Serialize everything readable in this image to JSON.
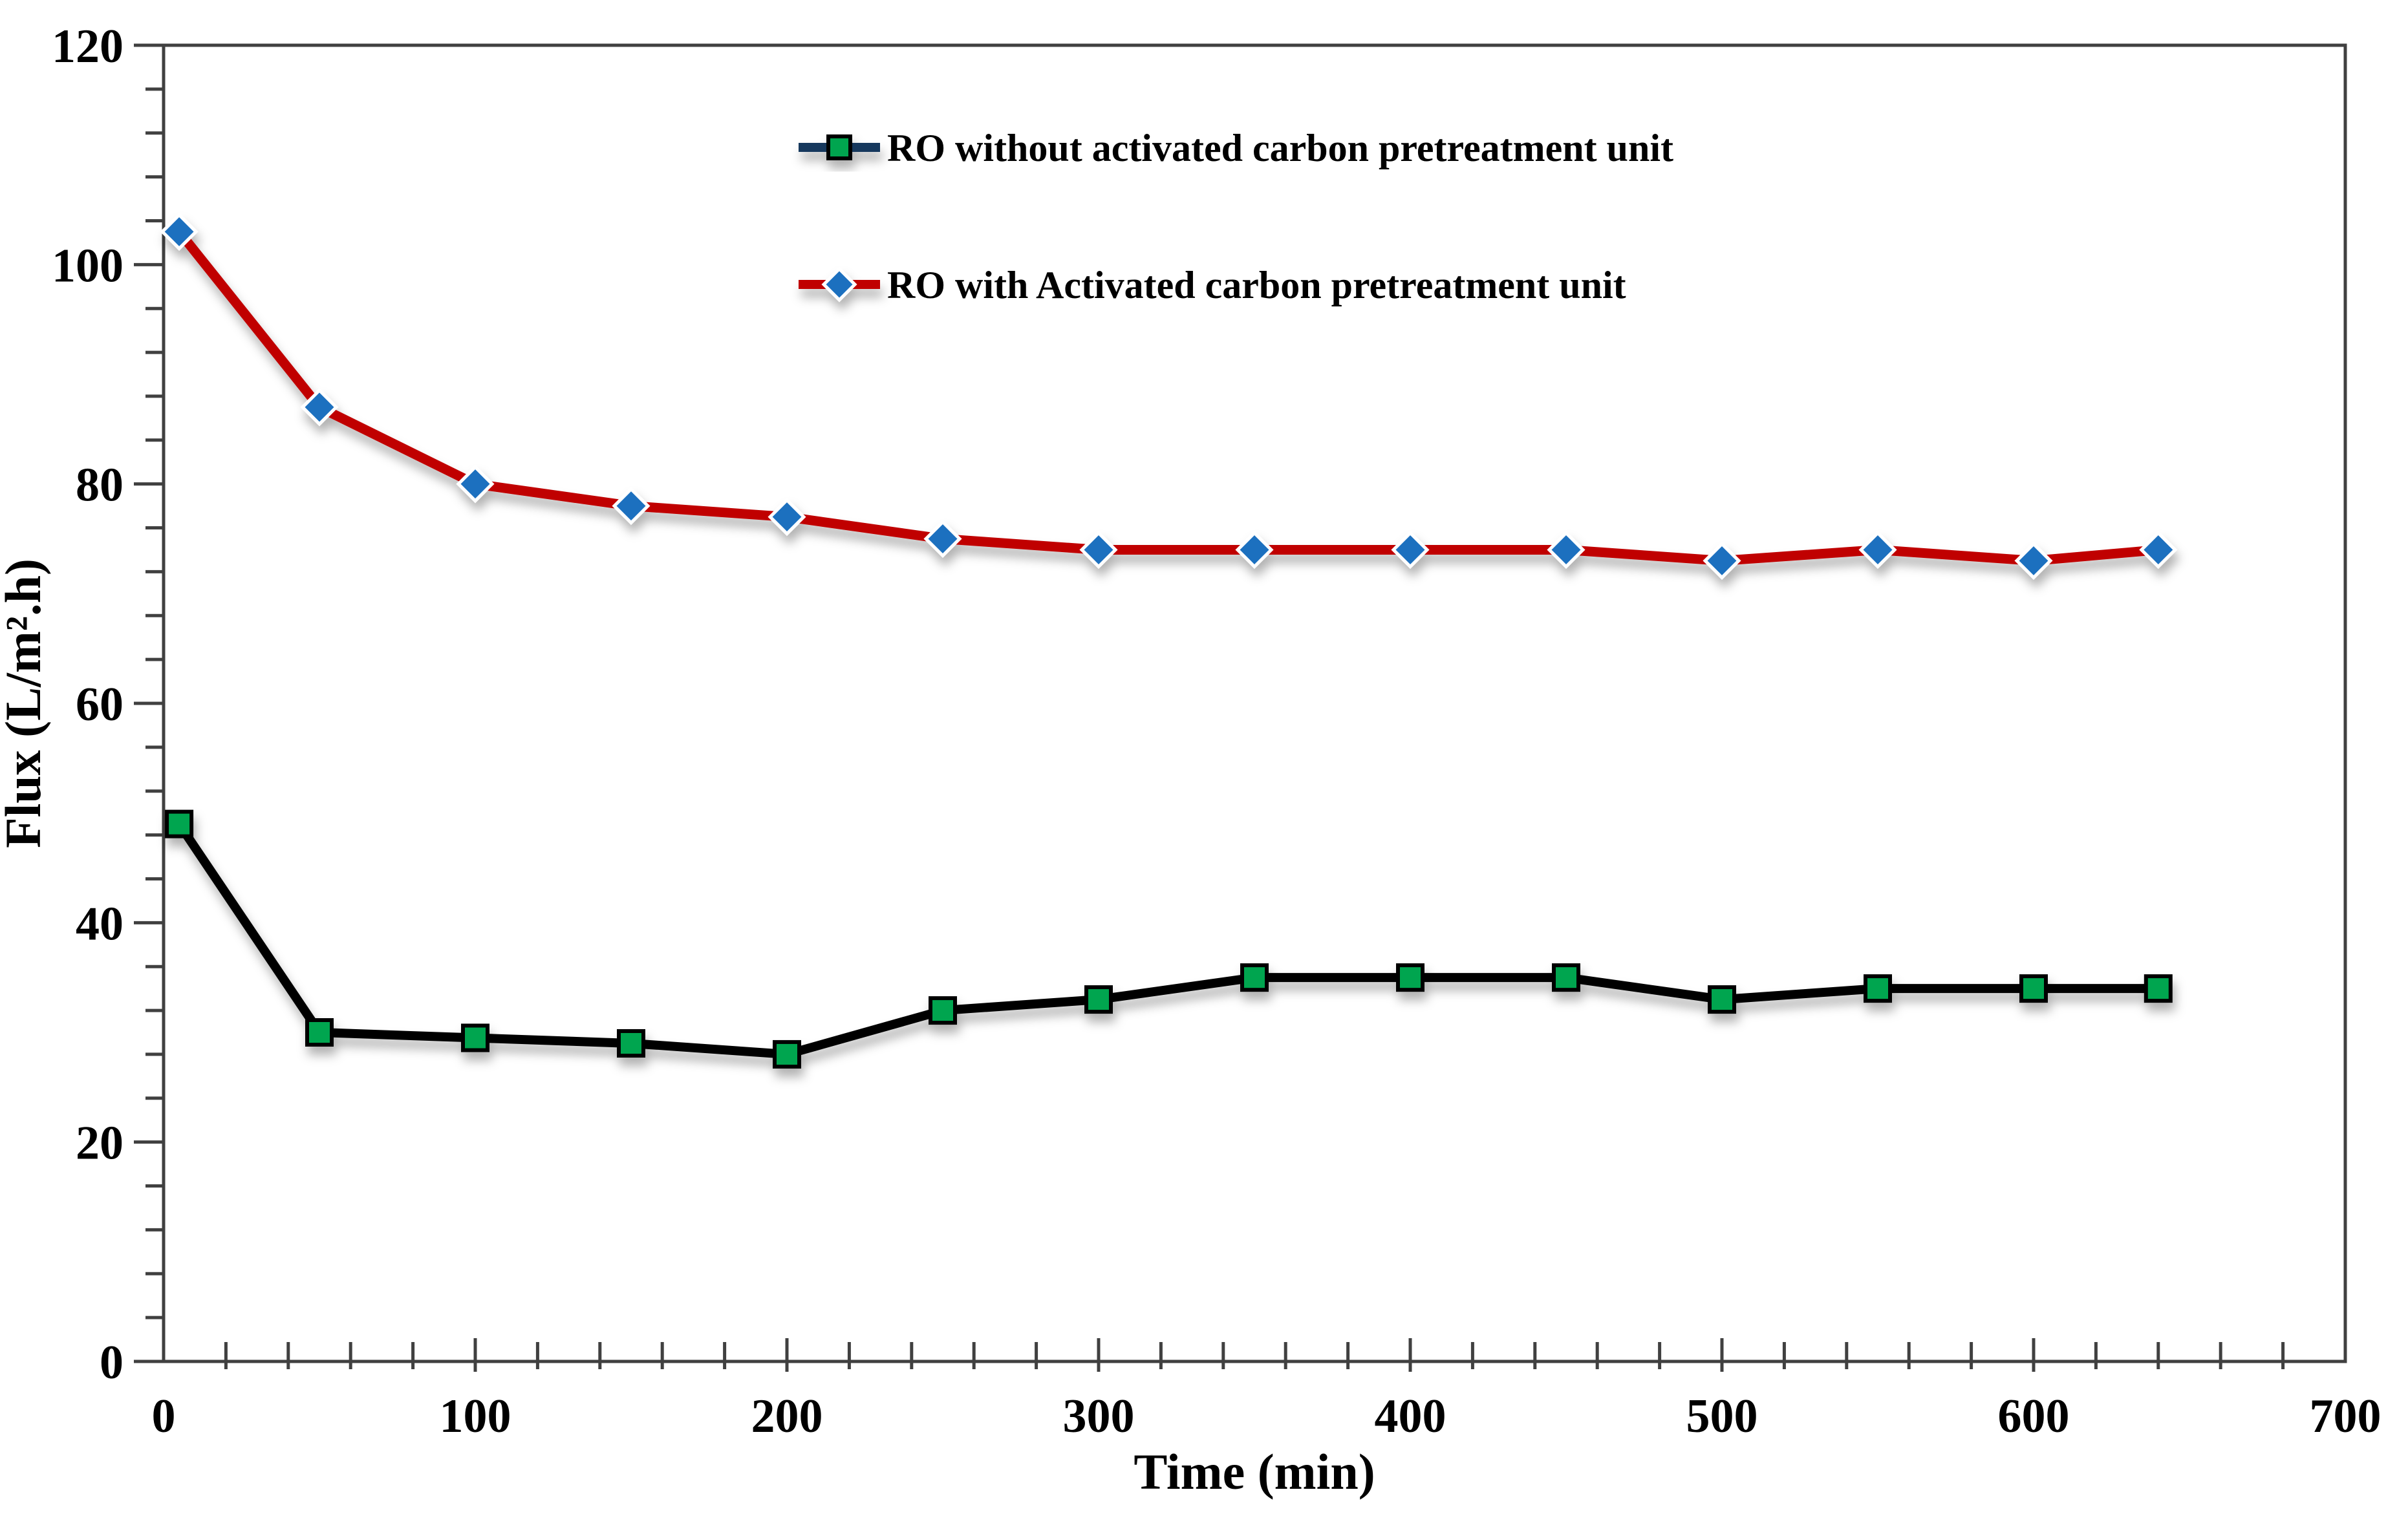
{
  "chart_data": {
    "type": "line",
    "title": "",
    "xlabel": "Time (min)",
    "ylabel": "Flux (L/m².h)",
    "x": [
      5,
      50,
      100,
      150,
      200,
      250,
      300,
      350,
      400,
      450,
      500,
      550,
      600,
      640
    ],
    "series": [
      {
        "name": "RO without activated carbon pretreatment unit",
        "values": [
          49,
          30,
          29.5,
          29,
          28,
          32,
          33,
          35,
          35,
          35,
          33,
          34,
          34,
          34
        ],
        "line_color": "#000000",
        "legend_swatch_color": "#17375D",
        "marker": "square",
        "marker_fill": "#00A550",
        "marker_stroke": "#000000"
      },
      {
        "name": "RO with Activated carbon pretreatment unit",
        "values": [
          103,
          87,
          80,
          78,
          77,
          75,
          74,
          74,
          74,
          74,
          73,
          74,
          73,
          74
        ],
        "line_color": "#C00000",
        "legend_swatch_color": "#C00000",
        "marker": "diamond",
        "marker_fill": "#1B6FBF",
        "marker_stroke": "#FFFFFF"
      }
    ],
    "xlim": [
      0,
      700
    ],
    "ylim": [
      0,
      120
    ],
    "x_ticks": [
      0,
      100,
      200,
      300,
      400,
      500,
      600,
      700
    ],
    "y_ticks": [
      0,
      20,
      40,
      60,
      80,
      100,
      120
    ],
    "x_minor_step": 20,
    "y_minor_step": 4,
    "grid": false,
    "legend_position": "top-center",
    "frame_color": "#404040",
    "background_color": "#ffffff"
  }
}
